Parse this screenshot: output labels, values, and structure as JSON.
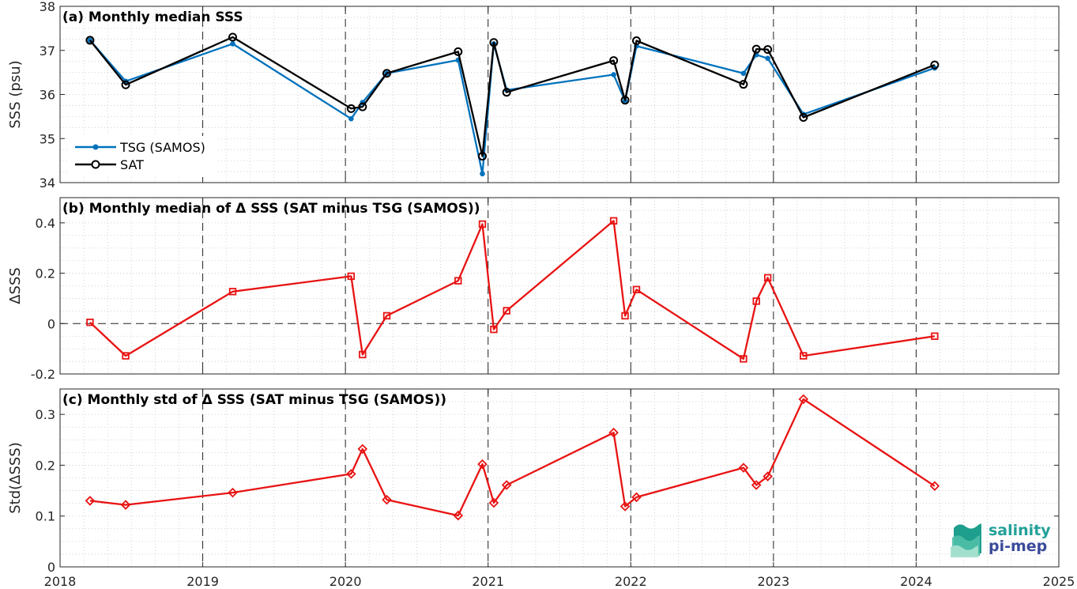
{
  "colors": {
    "tsg": "#0072bd",
    "sat": "#000000",
    "delta": "#e81313"
  },
  "x_ticks": [
    "2018",
    "2019",
    "2020",
    "2021",
    "2022",
    "2023",
    "2024",
    "2025"
  ],
  "logo": {
    "line1": "salinity",
    "line2": "pi-mep"
  },
  "chart_data": [
    {
      "type": "line",
      "title": "(a) Monthly median SSS",
      "ylabel": "SSS (psu)",
      "xlim": [
        2018,
        2025
      ],
      "ylim": [
        34,
        38
      ],
      "y_ticks": [
        "34",
        "35",
        "36",
        "37",
        "38"
      ],
      "grid": true,
      "legend": "left-lower",
      "year_markers": [
        2019,
        2020,
        2021,
        2022,
        2023,
        2024
      ],
      "x": [
        2018.21,
        2018.46,
        2019.21,
        2020.04,
        2020.12,
        2020.29,
        2020.79,
        2020.96,
        2021.04,
        2021.13,
        2021.88,
        2021.96,
        2022.04,
        2022.79,
        2022.88,
        2022.96,
        2023.21,
        2024.13
      ],
      "series": [
        {
          "name": "TSG (SAMOS)",
          "marker": "dot",
          "values": [
            37.23,
            36.3,
            37.15,
            35.45,
            35.82,
            36.48,
            36.78,
            34.2,
            37.15,
            36.1,
            36.45,
            35.85,
            37.1,
            36.48,
            36.9,
            36.82,
            35.55,
            36.6
          ]
        },
        {
          "name": "SAT",
          "marker": "circle",
          "values": [
            37.23,
            36.22,
            37.3,
            35.68,
            35.72,
            36.48,
            36.97,
            34.6,
            37.18,
            36.05,
            36.77,
            35.87,
            37.22,
            36.23,
            37.03,
            37.02,
            35.48,
            36.67
          ]
        }
      ]
    },
    {
      "type": "line",
      "title": "(b) Monthly median of Δ SSS (SAT minus TSG (SAMOS))",
      "ylabel": "ΔSSS",
      "xlim": [
        2018,
        2025
      ],
      "ylim": [
        -0.2,
        0.5
      ],
      "y_ticks": [
        "-0.2",
        "0",
        "0.2",
        "0.4"
      ],
      "zero_line": true,
      "grid": true,
      "x": [
        2018.21,
        2018.46,
        2019.21,
        2020.04,
        2020.12,
        2020.29,
        2020.79,
        2020.96,
        2021.04,
        2021.13,
        2021.88,
        2021.96,
        2022.04,
        2022.79,
        2022.88,
        2022.96,
        2023.21,
        2024.13
      ],
      "series": [
        {
          "marker": "square",
          "values": [
            0.005,
            -0.128,
            0.127,
            0.188,
            -0.123,
            0.031,
            0.17,
            0.395,
            -0.023,
            0.051,
            0.408,
            0.031,
            0.135,
            -0.14,
            0.089,
            0.182,
            -0.128,
            -0.05
          ]
        }
      ]
    },
    {
      "type": "line",
      "title": "(c) Monthly std of Δ SSS (SAT minus TSG (SAMOS))",
      "ylabel": "Std(ΔSSS)",
      "xlim": [
        2018,
        2025
      ],
      "ylim": [
        0,
        0.35
      ],
      "y_ticks": [
        "0",
        "0.1",
        "0.2",
        "0.3"
      ],
      "grid": true,
      "x": [
        2018.21,
        2018.46,
        2019.21,
        2020.04,
        2020.12,
        2020.29,
        2020.79,
        2020.96,
        2021.04,
        2021.13,
        2021.88,
        2021.96,
        2022.04,
        2022.79,
        2022.88,
        2022.96,
        2023.21,
        2024.13
      ],
      "series": [
        {
          "marker": "diamond",
          "values": [
            0.13,
            0.122,
            0.146,
            0.183,
            0.232,
            0.132,
            0.101,
            0.202,
            0.126,
            0.161,
            0.264,
            0.119,
            0.137,
            0.195,
            0.161,
            0.178,
            0.33,
            0.159
          ]
        }
      ]
    }
  ]
}
